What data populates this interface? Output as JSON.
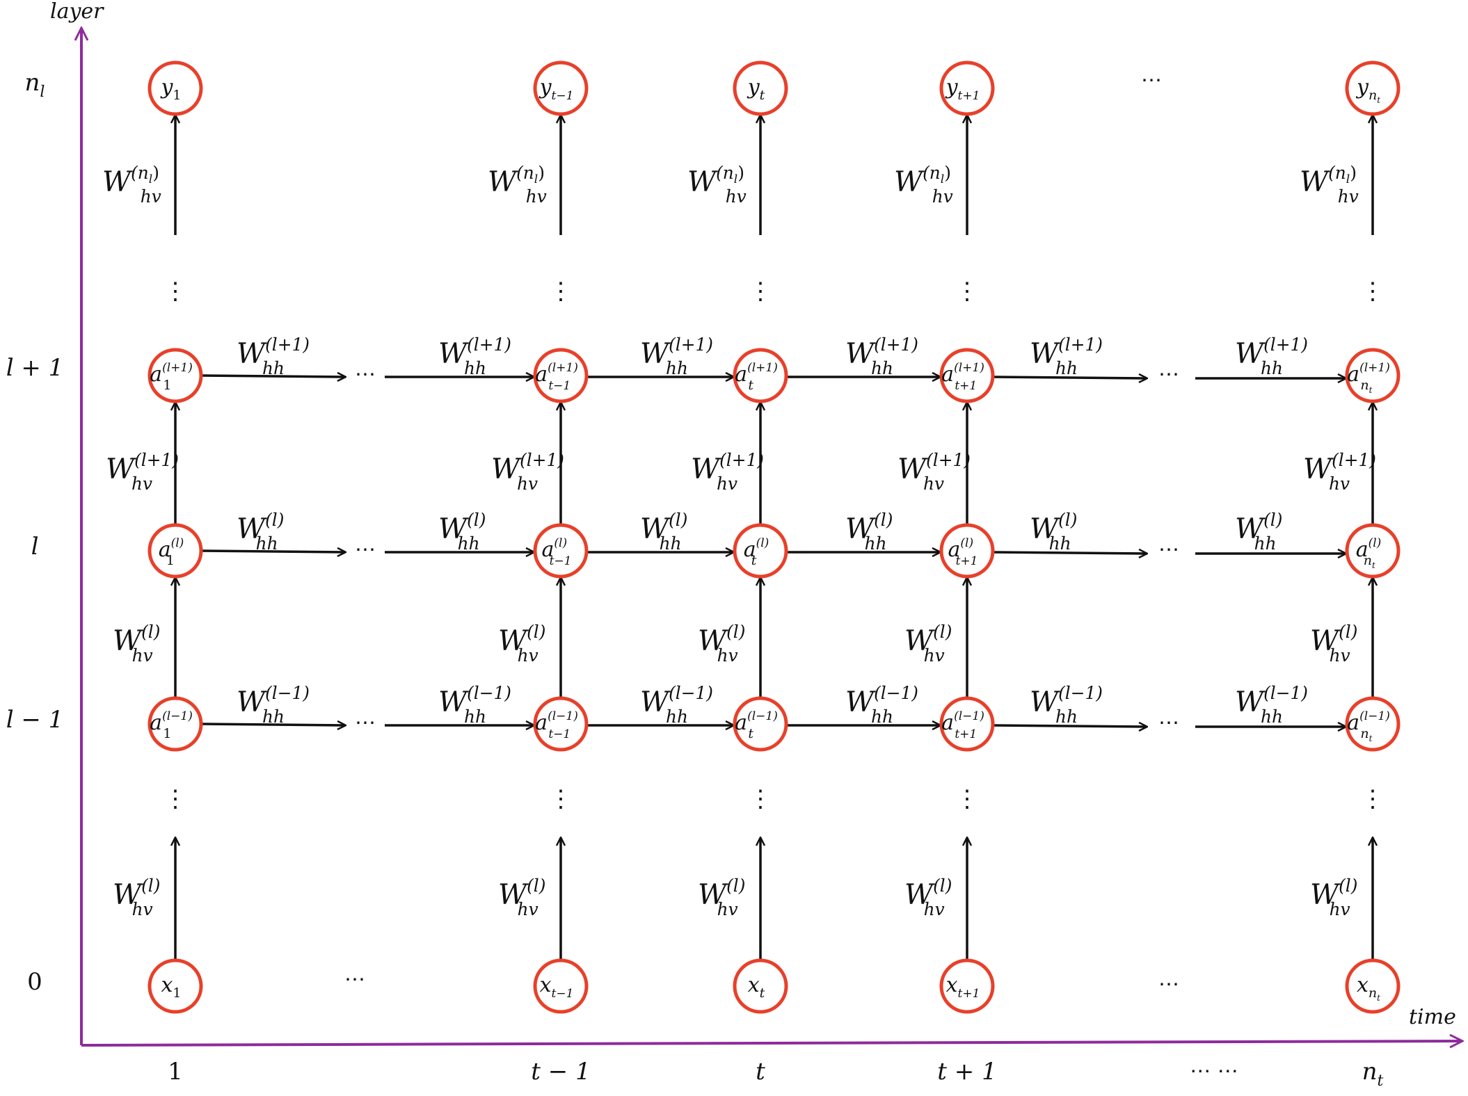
{
  "axes": {
    "y_title": "layer",
    "x_title": "time",
    "color": "#8e2b9c"
  },
  "colors": {
    "node": "#e8402a",
    "edge": "#111111"
  },
  "rows": [
    {
      "key": "out",
      "label": "n",
      "label_sub": "l"
    },
    {
      "key": "lp1",
      "label": "l + 1",
      "label_sub": ""
    },
    {
      "key": "l",
      "label": "l",
      "label_sub": ""
    },
    {
      "key": "lm1",
      "label": "l − 1",
      "label_sub": ""
    },
    {
      "key": "in",
      "label": "0",
      "label_sub": ""
    }
  ],
  "columns": [
    {
      "label": "1",
      "sub": "1"
    },
    {
      "label": "t − 1",
      "sub": "t−1"
    },
    {
      "label": "t",
      "sub": "t"
    },
    {
      "label": "t + 1",
      "sub": "t+1"
    },
    {
      "label": "n",
      "label_sub": "t",
      "sub": "n"
    }
  ],
  "time_ellipsis": "⋯ ⋯",
  "node_prefix": {
    "out": "y",
    "lp1": "a",
    "l": "a",
    "lm1": "a",
    "in": "x"
  },
  "node_sup": {
    "lp1": "(l+1)",
    "l": "(l)",
    "lm1": "(l−1)"
  },
  "weights": {
    "vertical": {
      "out": "(n_l)",
      "lp1": "(l+1)",
      "l": "(l)",
      "in": "(l)"
    },
    "horizontal": {
      "lp1": "(l+1)",
      "l": "(l)",
      "lm1": "(l−1)"
    },
    "symbol": "W",
    "sub_v": "hv",
    "sub_h": "hh"
  },
  "ellipsis": "⋯",
  "vdots": "⋮"
}
